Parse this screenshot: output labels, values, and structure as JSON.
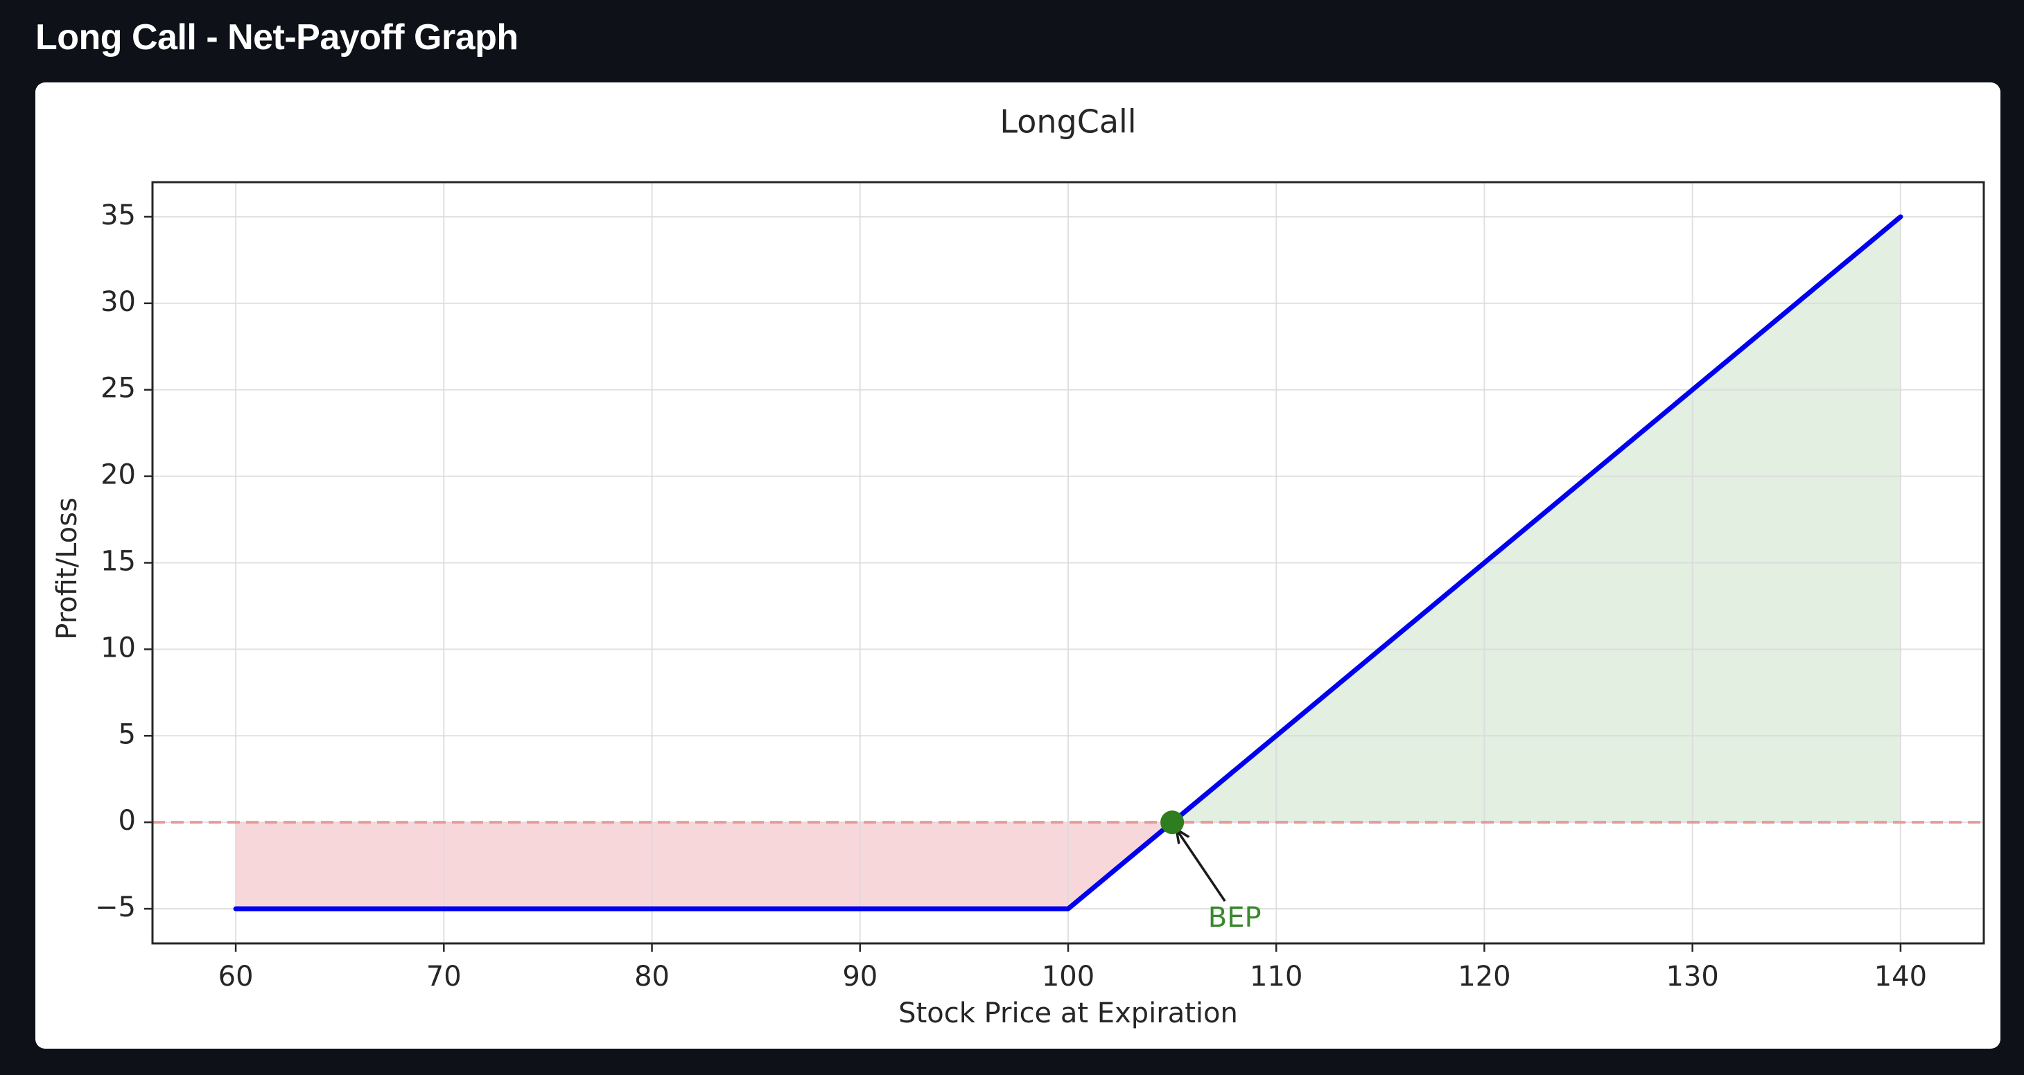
{
  "header": {
    "title": "Long Call - Net-Payoff Graph"
  },
  "chart_data": {
    "type": "line",
    "title": "LongCall",
    "xlabel": "Stock Price at Expiration",
    "ylabel": "Profit/Loss",
    "xlim": [
      56,
      144
    ],
    "ylim": [
      -7,
      37
    ],
    "xticks": [
      60,
      70,
      80,
      90,
      100,
      110,
      120,
      130,
      140
    ],
    "xtick_labels": [
      "60",
      "70",
      "80",
      "90",
      "100",
      "110",
      "120",
      "130",
      "140"
    ],
    "yticks": [
      -5,
      0,
      5,
      10,
      15,
      20,
      25,
      30,
      35
    ],
    "ytick_labels": [
      "−5",
      "0",
      "5",
      "10",
      "15",
      "20",
      "25",
      "30",
      "35"
    ],
    "grid": true,
    "series": [
      {
        "x": [
          60,
          100,
          140
        ],
        "y": [
          -5,
          -5,
          35
        ],
        "color": "#0000ee"
      }
    ],
    "zero_line": {
      "y": 0,
      "style": "dashed",
      "color": "#e89a9a"
    },
    "fills": [
      {
        "region": "loss",
        "x": [
          60,
          100,
          105
        ],
        "y": [
          -5,
          -5,
          0
        ],
        "color": "#f8d7da"
      },
      {
        "region": "profit",
        "x": [
          105,
          140
        ],
        "y": [
          0,
          35
        ],
        "color": "#e2efe1"
      }
    ],
    "annotations": [
      {
        "text": "BEP",
        "x": 105,
        "y": 0,
        "text_x": 108,
        "text_y": -5.6,
        "color": "#3a8a2e",
        "marker_color": "#2e7d1f"
      }
    ]
  }
}
